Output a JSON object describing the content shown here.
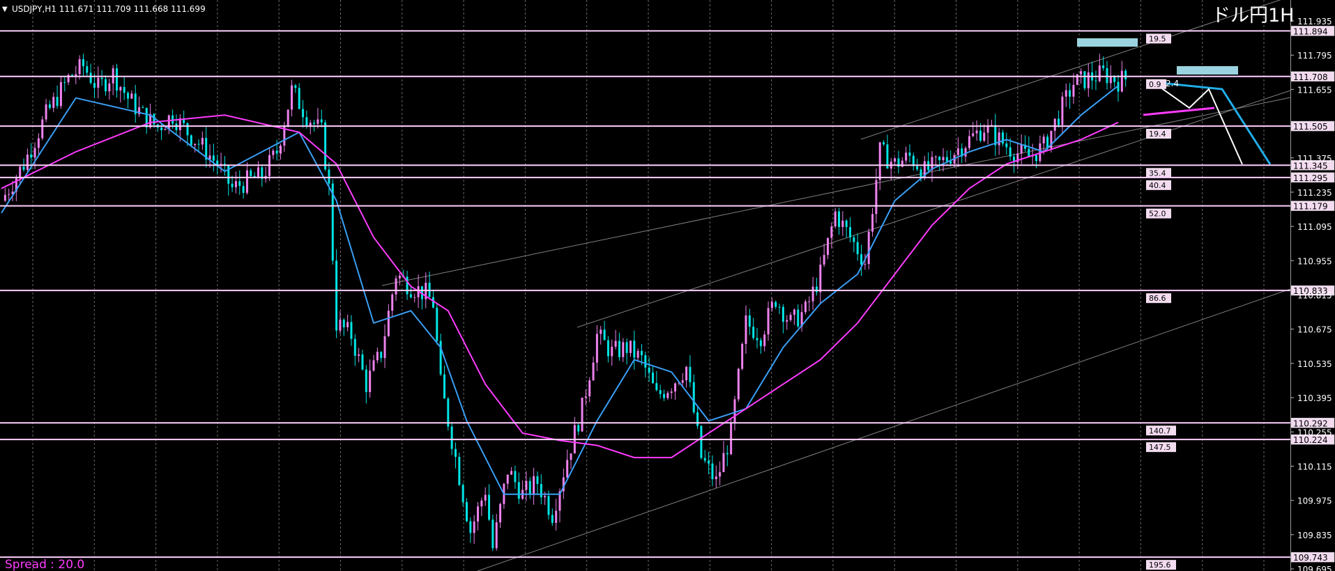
{
  "header": {
    "symbol_line": "USDJPY,H1  111.671 111.709 111.668 111.699",
    "title": "ドル円1H",
    "spread": "Spread : 20.0"
  },
  "colors": {
    "background": "#000000",
    "candle_up": "#ee82ee",
    "candle_down": "#00e5e5",
    "ma_fast": "#3a9ff5",
    "ma_slow": "#ff3cff",
    "hline": "#ffd0ff",
    "channel": "#808080",
    "target_box": "#9bd4e0"
  },
  "chart_data": {
    "type": "candlestick",
    "symbol": "USDJPY",
    "timeframe": "H1",
    "ohlc_last": {
      "open": 111.671,
      "high": 111.709,
      "low": 111.668,
      "close": 111.699
    },
    "ylim": [
      109.695,
      111.975
    ],
    "y_ticks": [
      "111.935",
      "111.795",
      "111.655",
      "111.375",
      "111.235",
      "111.095",
      "110.955",
      "110.815",
      "110.675",
      "110.535",
      "110.395",
      "110.255",
      "110.115",
      "109.975",
      "109.835",
      "109.695"
    ],
    "x_ticks": [],
    "grid": true,
    "horizontal_levels": [
      {
        "price": "111.894",
        "label": "19.5"
      },
      {
        "price": "111.708",
        "label": "0.9"
      },
      {
        "price": "111.505",
        "label": "19.4"
      },
      {
        "price": "111.345",
        "label": "35.4"
      },
      {
        "price": "111.295",
        "label": "40.4"
      },
      {
        "price": "111.179",
        "label": "52.0"
      },
      {
        "price": "110.833",
        "label": "86.6"
      },
      {
        "price": "110.292",
        "label": "140.7"
      },
      {
        "price": "110.224",
        "label": "147.5"
      },
      {
        "price": "109.743",
        "label": "195.6"
      }
    ],
    "close_path": [
      [
        0,
        111.2
      ],
      [
        6,
        111.35
      ],
      [
        12,
        111.55
      ],
      [
        18,
        111.7
      ],
      [
        22,
        111.75
      ],
      [
        26,
        111.66
      ],
      [
        30,
        111.72
      ],
      [
        34,
        111.62
      ],
      [
        38,
        111.55
      ],
      [
        42,
        111.5
      ],
      [
        46,
        111.55
      ],
      [
        50,
        111.48
      ],
      [
        54,
        111.42
      ],
      [
        58,
        111.35
      ],
      [
        62,
        111.25
      ],
      [
        66,
        111.28
      ],
      [
        70,
        111.3
      ],
      [
        74,
        111.4
      ],
      [
        78,
        111.65
      ],
      [
        82,
        111.55
      ],
      [
        86,
        111.48
      ],
      [
        88,
        111.25
      ],
      [
        90,
        110.7
      ],
      [
        94,
        110.65
      ],
      [
        98,
        110.45
      ],
      [
        102,
        110.58
      ],
      [
        106,
        110.9
      ],
      [
        110,
        110.85
      ],
      [
        114,
        110.82
      ],
      [
        116,
        110.78
      ],
      [
        118,
        110.45
      ],
      [
        122,
        110.15
      ],
      [
        126,
        109.85
      ],
      [
        130,
        110.02
      ],
      [
        132,
        109.78
      ],
      [
        136,
        110.1
      ],
      [
        140,
        110.0
      ],
      [
        144,
        110.05
      ],
      [
        148,
        109.92
      ],
      [
        152,
        110.15
      ],
      [
        156,
        110.35
      ],
      [
        160,
        110.65
      ],
      [
        164,
        110.58
      ],
      [
        168,
        110.6
      ],
      [
        172,
        110.55
      ],
      [
        176,
        110.4
      ],
      [
        180,
        110.45
      ],
      [
        184,
        110.52
      ],
      [
        188,
        110.15
      ],
      [
        192,
        110.05
      ],
      [
        196,
        110.25
      ],
      [
        200,
        110.7
      ],
      [
        204,
        110.65
      ],
      [
        208,
        110.8
      ],
      [
        212,
        110.7
      ],
      [
        216,
        110.75
      ],
      [
        220,
        110.9
      ],
      [
        224,
        111.15
      ],
      [
        228,
        111.05
      ],
      [
        232,
        110.95
      ],
      [
        236,
        111.4
      ],
      [
        240,
        111.35
      ],
      [
        244,
        111.38
      ],
      [
        248,
        111.32
      ],
      [
        252,
        111.35
      ],
      [
        256,
        111.4
      ],
      [
        260,
        111.45
      ],
      [
        264,
        111.5
      ],
      [
        268,
        111.45
      ],
      [
        272,
        111.4
      ],
      [
        276,
        111.38
      ],
      [
        280,
        111.42
      ],
      [
        284,
        111.55
      ],
      [
        288,
        111.68
      ],
      [
        292,
        111.7
      ],
      [
        296,
        111.72
      ],
      [
        300,
        111.69
      ],
      [
        302,
        111.699
      ]
    ],
    "series": [
      {
        "values": [
          [
            0,
            111.15
          ],
          [
            20,
            111.62
          ],
          [
            40,
            111.55
          ],
          [
            60,
            111.32
          ],
          [
            80,
            111.48
          ],
          [
            90,
            111.2
          ],
          [
            100,
            110.7
          ],
          [
            110,
            110.75
          ],
          [
            118,
            110.6
          ],
          [
            125,
            110.3
          ],
          [
            135,
            110.0
          ],
          [
            150,
            110.0
          ],
          [
            160,
            110.3
          ],
          [
            170,
            110.55
          ],
          [
            180,
            110.5
          ],
          [
            190,
            110.3
          ],
          [
            200,
            110.35
          ],
          [
            210,
            110.6
          ],
          [
            220,
            110.78
          ],
          [
            230,
            110.9
          ],
          [
            240,
            111.2
          ],
          [
            250,
            111.33
          ],
          [
            260,
            111.4
          ],
          [
            270,
            111.45
          ],
          [
            280,
            111.4
          ],
          [
            290,
            111.55
          ],
          [
            300,
            111.67
          ]
        ]
      },
      {
        "values": [
          [
            0,
            111.25
          ],
          [
            20,
            111.4
          ],
          [
            40,
            111.52
          ],
          [
            60,
            111.55
          ],
          [
            80,
            111.48
          ],
          [
            90,
            111.35
          ],
          [
            100,
            111.05
          ],
          [
            110,
            110.85
          ],
          [
            120,
            110.75
          ],
          [
            130,
            110.45
          ],
          [
            140,
            110.25
          ],
          [
            150,
            110.22
          ],
          [
            160,
            110.2
          ],
          [
            170,
            110.15
          ],
          [
            180,
            110.15
          ],
          [
            190,
            110.25
          ],
          [
            200,
            110.35
          ],
          [
            210,
            110.45
          ],
          [
            220,
            110.55
          ],
          [
            230,
            110.7
          ],
          [
            240,
            110.9
          ],
          [
            250,
            111.1
          ],
          [
            260,
            111.25
          ],
          [
            270,
            111.35
          ],
          [
            280,
            111.4
          ],
          [
            290,
            111.45
          ],
          [
            300,
            111.52
          ]
        ]
      }
    ]
  }
}
